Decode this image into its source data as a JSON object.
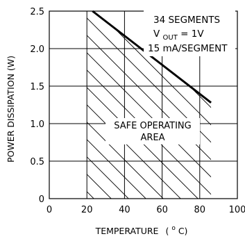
{
  "chart_data": {
    "type": "line",
    "title": "",
    "xlabel": "TEMPERATURE",
    "xlabel_unit_prefix": "(",
    "xlabel_unit_sup": "o",
    "xlabel_unit_suffix": "C)",
    "ylabel": "POWER DISSIPATION (W)",
    "xlim": [
      0,
      100
    ],
    "ylim": [
      0,
      2.5
    ],
    "x_ticks": [
      0,
      20,
      40,
      60,
      80,
      100
    ],
    "x_tick_labels": [
      "0",
      "20",
      "40",
      "60",
      "80",
      "100"
    ],
    "y_ticks": [
      0,
      0.5,
      1.0,
      1.5,
      2.0,
      2.5
    ],
    "y_tick_labels": [
      "0",
      "0.5",
      "1.0",
      "1.5",
      "2.0",
      "2.5"
    ],
    "grid": true,
    "legend": "none",
    "series": [
      {
        "x": [
          23,
          86
        ],
        "y": [
          2.5,
          1.28
        ]
      }
    ],
    "annotations": {
      "line1": "34 SEGMENTS",
      "line2_main": "V",
      "line2_sub": "OUT",
      "line2_rest": " = 1V",
      "line3": "15 mA/SEGMENT",
      "region_line1": "SAFE OPERATING",
      "region_line2": "AREA"
    },
    "colors": {
      "line": "#000000",
      "hatch": "#000000"
    }
  }
}
